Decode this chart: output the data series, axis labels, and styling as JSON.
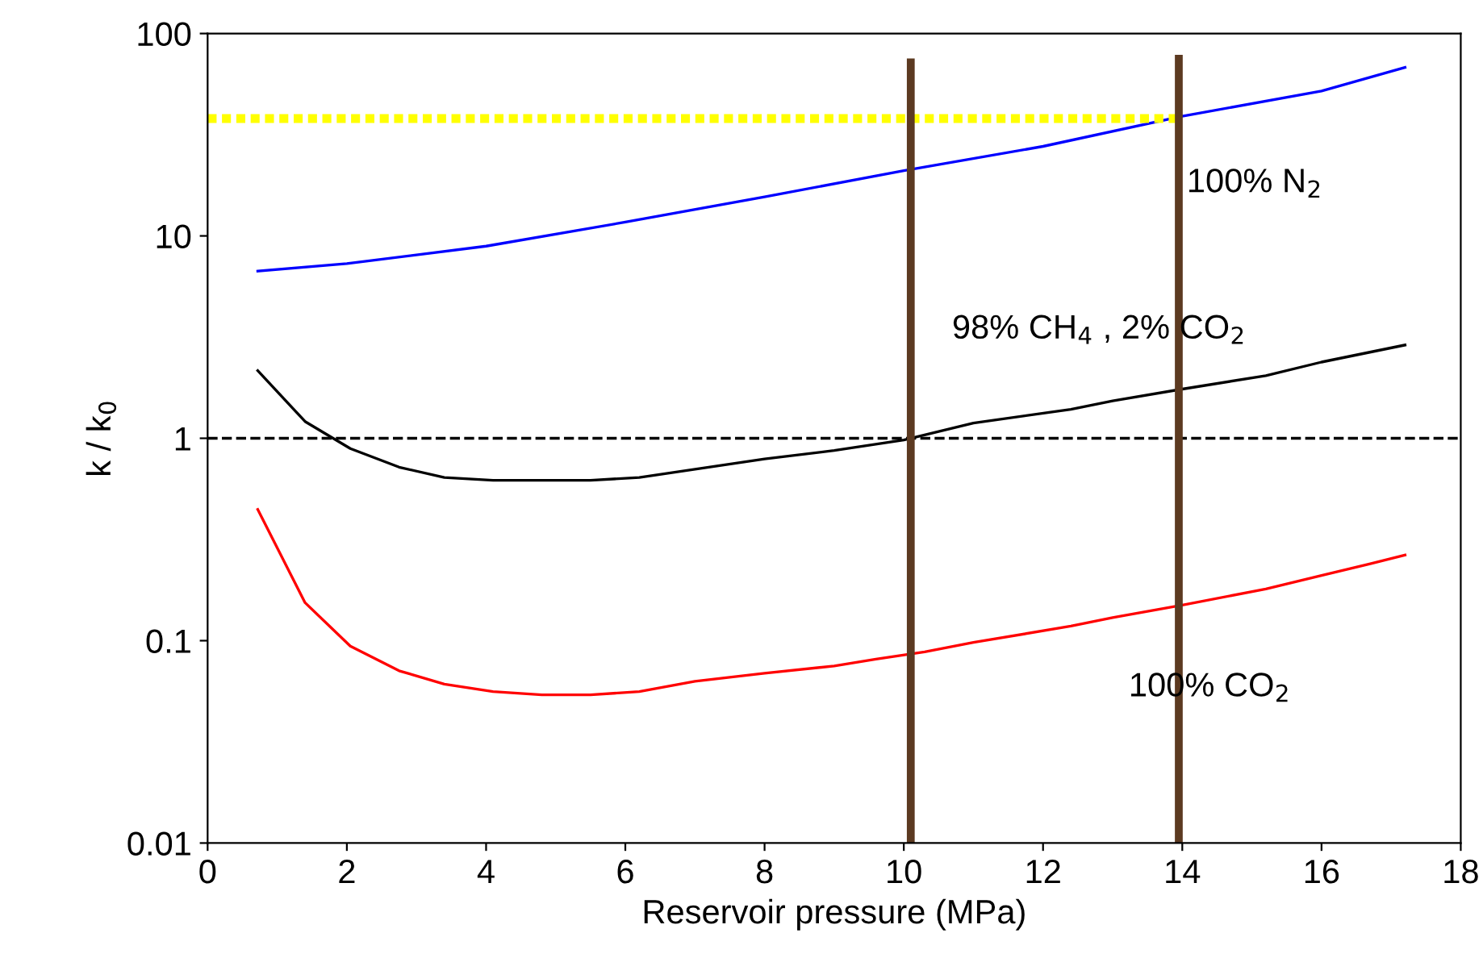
{
  "chart_data": {
    "type": "line",
    "xlabel": "Reservoir pressure (MPa)",
    "ylabel": "k / k$_{0}$",
    "log": "y",
    "xlim": [
      0,
      18
    ],
    "ylim": [
      0.01,
      100
    ],
    "xticks": [
      0,
      2,
      4,
      6,
      8,
      10,
      12,
      14,
      16,
      18
    ],
    "yticks": [
      0.01,
      0.1,
      1,
      10,
      100
    ],
    "grid": false,
    "legend": false,
    "marker": "none",
    "series": [
      {
        "color": "#0000ff",
        "x": [
          0.72,
          2,
          4,
          6,
          8,
          10,
          12,
          14,
          16,
          17.2
        ],
        "values": [
          6.7,
          7.3,
          8.9,
          11.7,
          15.6,
          21,
          27.7,
          39,
          52,
          68
        ]
      },
      {
        "color": "#000000",
        "x": [
          0.72,
          1.4,
          2.05,
          2.75,
          3.4,
          4.1,
          5.5,
          6.2,
          8,
          9,
          10,
          11,
          12.4,
          13,
          14,
          15.2,
          16,
          17.2
        ],
        "values": [
          2.16,
          1.21,
          0.89,
          0.72,
          0.64,
          0.62,
          0.62,
          0.64,
          0.79,
          0.87,
          0.98,
          1.19,
          1.39,
          1.53,
          1.75,
          2.04,
          2.38,
          2.89
        ]
      },
      {
        "color": "#ff0000",
        "x": [
          0.72,
          1.4,
          2.05,
          2.75,
          3.4,
          4.1,
          4.8,
          5.5,
          6.2,
          7,
          8,
          9,
          9.6,
          10.3,
          11,
          12.4,
          13,
          14,
          15.2,
          16,
          16.7,
          17.2
        ],
        "values": [
          0.445,
          0.154,
          0.094,
          0.071,
          0.061,
          0.056,
          0.054,
          0.054,
          0.056,
          0.063,
          0.069,
          0.075,
          0.081,
          0.088,
          0.098,
          0.118,
          0.13,
          0.15,
          0.18,
          0.21,
          0.24,
          0.265
        ]
      },
      {
        "color": "#ffff00",
        "line_style": "dotted",
        "x": [
          0,
          14
        ],
        "values": [
          38,
          38
        ]
      },
      {
        "color": "#5c3a21",
        "x": [
          10.1,
          10.1
        ],
        "values": [
          0.01,
          72
        ]
      },
      {
        "color": "#5c3a21",
        "x": [
          13.95,
          13.95
        ],
        "values": [
          0.01,
          75
        ]
      }
    ],
    "ref_lines": [
      {
        "axis": "y",
        "value": 1,
        "color": "#000000",
        "line_style": "dashed"
      }
    ],
    "annotations": [
      {
        "text": "100% N$_{2}$",
        "x": 14,
        "y": 39
      },
      "98% CH$_{4}$ , 2% CO$_{2}$",
      "100% CO$_{2}$"
    ]
  }
}
